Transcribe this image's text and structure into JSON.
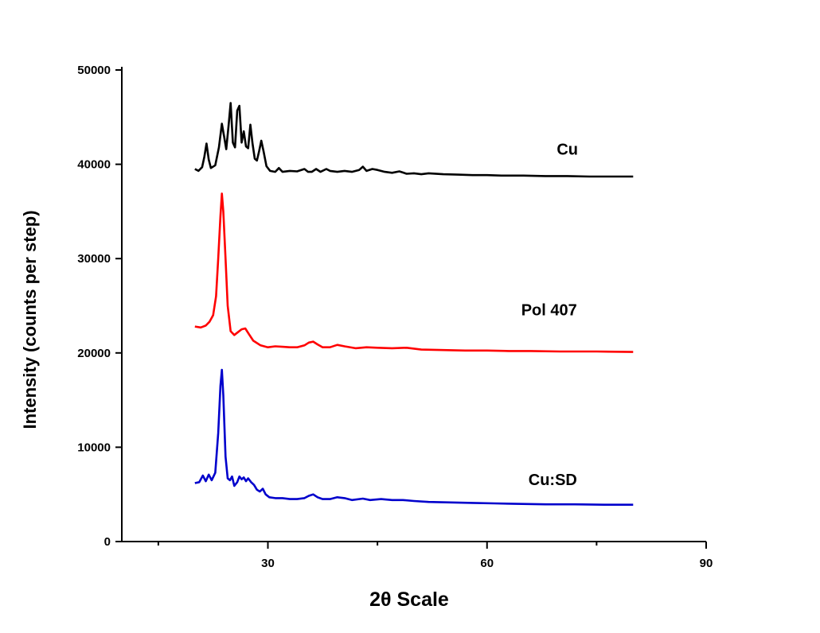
{
  "chart_data": {
    "type": "line",
    "xlabel": "2θ Scale",
    "ylabel": "Intensity (counts per step)",
    "xlim": [
      10,
      90
    ],
    "ylim": [
      0,
      50000
    ],
    "x_ticks": [
      30,
      60,
      90
    ],
    "x_minor_ticks": [
      15,
      45,
      75
    ],
    "y_ticks": [
      0,
      10000,
      20000,
      30000,
      40000,
      50000
    ],
    "grid": false,
    "series": [
      {
        "name": "Cu",
        "color": "#000000",
        "points": [
          [
            20.0,
            39500
          ],
          [
            20.5,
            39300
          ],
          [
            21.0,
            39700
          ],
          [
            21.3,
            40800
          ],
          [
            21.6,
            42200
          ],
          [
            21.9,
            40500
          ],
          [
            22.2,
            39600
          ],
          [
            22.8,
            39900
          ],
          [
            23.3,
            41800
          ],
          [
            23.7,
            44300
          ],
          [
            24.0,
            43000
          ],
          [
            24.3,
            41600
          ],
          [
            24.6,
            44000
          ],
          [
            24.9,
            46500
          ],
          [
            25.2,
            42300
          ],
          [
            25.5,
            41800
          ],
          [
            25.8,
            45700
          ],
          [
            26.1,
            46200
          ],
          [
            26.4,
            42300
          ],
          [
            26.7,
            43500
          ],
          [
            27.0,
            41900
          ],
          [
            27.3,
            41700
          ],
          [
            27.6,
            44200
          ],
          [
            27.9,
            42200
          ],
          [
            28.2,
            40600
          ],
          [
            28.5,
            40400
          ],
          [
            28.8,
            41400
          ],
          [
            29.1,
            42500
          ],
          [
            29.4,
            41400
          ],
          [
            29.8,
            39800
          ],
          [
            30.3,
            39300
          ],
          [
            31.0,
            39200
          ],
          [
            31.5,
            39600
          ],
          [
            32.0,
            39200
          ],
          [
            33.0,
            39300
          ],
          [
            34.0,
            39250
          ],
          [
            35.0,
            39500
          ],
          [
            35.5,
            39200
          ],
          [
            36.0,
            39200
          ],
          [
            36.6,
            39500
          ],
          [
            37.2,
            39200
          ],
          [
            38.0,
            39500
          ],
          [
            38.5,
            39300
          ],
          [
            39.5,
            39200
          ],
          [
            40.5,
            39300
          ],
          [
            41.5,
            39200
          ],
          [
            42.5,
            39400
          ],
          [
            43.0,
            39750
          ],
          [
            43.5,
            39300
          ],
          [
            44.3,
            39500
          ],
          [
            45.0,
            39400
          ],
          [
            46.0,
            39200
          ],
          [
            47.0,
            39100
          ],
          [
            48.0,
            39250
          ],
          [
            49.0,
            39000
          ],
          [
            50.0,
            39050
          ],
          [
            51.0,
            38950
          ],
          [
            52.0,
            39050
          ],
          [
            54.0,
            38950
          ],
          [
            56.0,
            38900
          ],
          [
            58.0,
            38850
          ],
          [
            60.0,
            38850
          ],
          [
            62.0,
            38800
          ],
          [
            65.0,
            38800
          ],
          [
            68.0,
            38750
          ],
          [
            71.0,
            38750
          ],
          [
            74.0,
            38700
          ],
          [
            77.0,
            38700
          ],
          [
            80.0,
            38700
          ]
        ]
      },
      {
        "name": "Pol 407",
        "color": "#ff0000",
        "points": [
          [
            20.0,
            22800
          ],
          [
            20.8,
            22700
          ],
          [
            21.5,
            22900
          ],
          [
            22.0,
            23300
          ],
          [
            22.5,
            24000
          ],
          [
            22.9,
            26000
          ],
          [
            23.2,
            30000
          ],
          [
            23.5,
            34500
          ],
          [
            23.7,
            36900
          ],
          [
            23.9,
            35000
          ],
          [
            24.2,
            30000
          ],
          [
            24.5,
            25000
          ],
          [
            24.9,
            22300
          ],
          [
            25.4,
            21900
          ],
          [
            25.9,
            22200
          ],
          [
            26.4,
            22500
          ],
          [
            26.9,
            22600
          ],
          [
            27.4,
            22000
          ],
          [
            28.0,
            21300
          ],
          [
            29.0,
            20800
          ],
          [
            30.0,
            20600
          ],
          [
            31.0,
            20700
          ],
          [
            32.0,
            20650
          ],
          [
            33.0,
            20600
          ],
          [
            34.0,
            20600
          ],
          [
            35.0,
            20800
          ],
          [
            35.6,
            21100
          ],
          [
            36.2,
            21200
          ],
          [
            36.8,
            20900
          ],
          [
            37.5,
            20600
          ],
          [
            38.5,
            20600
          ],
          [
            39.5,
            20850
          ],
          [
            40.5,
            20700
          ],
          [
            42.0,
            20500
          ],
          [
            43.5,
            20600
          ],
          [
            45.0,
            20550
          ],
          [
            47.0,
            20500
          ],
          [
            49.0,
            20550
          ],
          [
            51.0,
            20350
          ],
          [
            54.0,
            20300
          ],
          [
            57.0,
            20250
          ],
          [
            60.0,
            20250
          ],
          [
            63.0,
            20200
          ],
          [
            66.0,
            20200
          ],
          [
            70.0,
            20150
          ],
          [
            75.0,
            20150
          ],
          [
            80.0,
            20100
          ]
        ]
      },
      {
        "name": "Cu:SD",
        "color": "#0000cc",
        "points": [
          [
            20.0,
            6200
          ],
          [
            20.6,
            6300
          ],
          [
            21.1,
            7000
          ],
          [
            21.5,
            6400
          ],
          [
            21.9,
            7100
          ],
          [
            22.3,
            6500
          ],
          [
            22.8,
            7300
          ],
          [
            23.2,
            11500
          ],
          [
            23.5,
            16500
          ],
          [
            23.7,
            18200
          ],
          [
            23.9,
            15500
          ],
          [
            24.2,
            9000
          ],
          [
            24.5,
            6700
          ],
          [
            24.8,
            6500
          ],
          [
            25.1,
            6900
          ],
          [
            25.4,
            5900
          ],
          [
            25.8,
            6300
          ],
          [
            26.1,
            6900
          ],
          [
            26.4,
            6600
          ],
          [
            26.7,
            6800
          ],
          [
            27.0,
            6400
          ],
          [
            27.3,
            6700
          ],
          [
            27.7,
            6300
          ],
          [
            28.1,
            6000
          ],
          [
            28.5,
            5500
          ],
          [
            28.9,
            5300
          ],
          [
            29.3,
            5600
          ],
          [
            29.7,
            5000
          ],
          [
            30.2,
            4700
          ],
          [
            31.0,
            4600
          ],
          [
            32.0,
            4600
          ],
          [
            33.0,
            4500
          ],
          [
            34.0,
            4500
          ],
          [
            35.0,
            4600
          ],
          [
            35.6,
            4850
          ],
          [
            36.2,
            5000
          ],
          [
            36.8,
            4700
          ],
          [
            37.5,
            4500
          ],
          [
            38.5,
            4500
          ],
          [
            39.5,
            4700
          ],
          [
            40.5,
            4600
          ],
          [
            41.5,
            4400
          ],
          [
            43.0,
            4550
          ],
          [
            44.0,
            4400
          ],
          [
            45.5,
            4500
          ],
          [
            47.0,
            4400
          ],
          [
            48.5,
            4400
          ],
          [
            50.0,
            4300
          ],
          [
            52.0,
            4200
          ],
          [
            55.0,
            4150
          ],
          [
            58.0,
            4100
          ],
          [
            61.0,
            4050
          ],
          [
            64.0,
            4000
          ],
          [
            68.0,
            3950
          ],
          [
            72.0,
            3950
          ],
          [
            76.0,
            3900
          ],
          [
            80.0,
            3900
          ]
        ]
      }
    ],
    "series_labels": [
      {
        "text": "Cu",
        "x": 71,
        "y": 41000
      },
      {
        "text": "Pol 407",
        "x": 68.5,
        "y": 24000
      },
      {
        "text": "Cu:SD",
        "x": 69,
        "y": 6000
      }
    ]
  }
}
